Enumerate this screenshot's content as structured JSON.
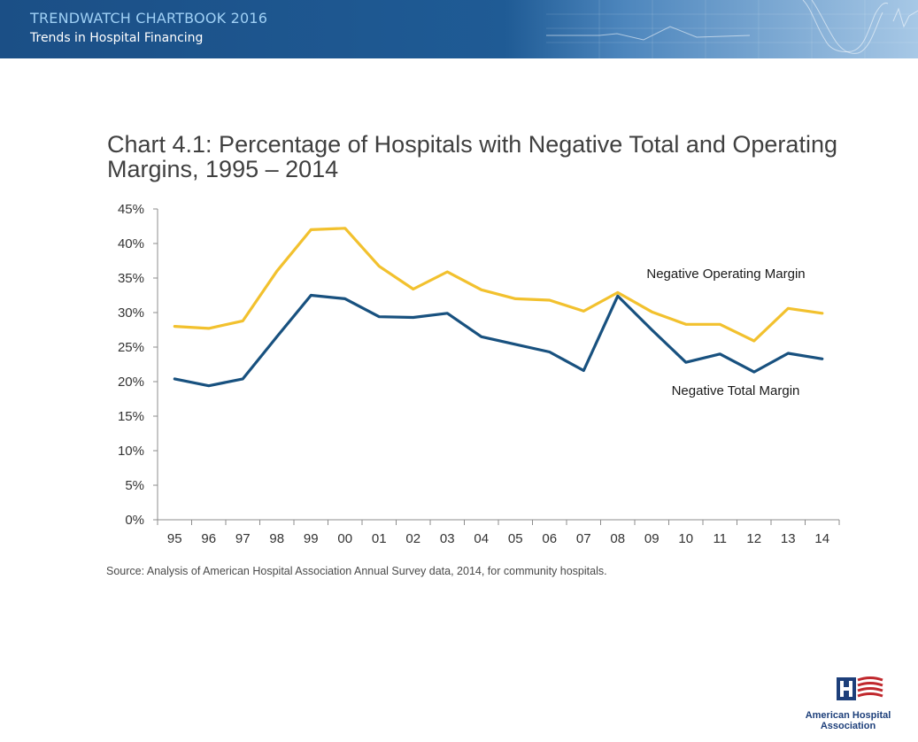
{
  "header": {
    "title": "TRENDWATCH CHARTBOOK 2016",
    "subtitle": "Trends in Hospital Financing"
  },
  "chart_data": {
    "type": "line",
    "title": "Chart 4.1: Percentage of Hospitals with Negative Total and Operating Margins, 1995 – 2014",
    "categories": [
      "95",
      "96",
      "97",
      "98",
      "99",
      "00",
      "01",
      "02",
      "03",
      "04",
      "05",
      "06",
      "07",
      "08",
      "09",
      "10",
      "11",
      "12",
      "13",
      "14"
    ],
    "ylim": [
      0,
      45
    ],
    "yticks": [
      "0%",
      "5%",
      "10%",
      "15%",
      "20%",
      "25%",
      "30%",
      "35%",
      "40%",
      "45%"
    ],
    "grid": false,
    "series": [
      {
        "name": "Negative Operating Margin",
        "color": "#f2c12e",
        "values": [
          28.0,
          27.7,
          28.8,
          36.0,
          42.0,
          42.2,
          36.7,
          33.4,
          35.9,
          33.3,
          32.0,
          31.8,
          30.2,
          32.9,
          30.1,
          28.3,
          28.3,
          25.9,
          30.6,
          29.9
        ]
      },
      {
        "name": "Negative Total Margin",
        "color": "#18517f",
        "values": [
          20.4,
          19.4,
          20.4,
          26.5,
          32.5,
          32.0,
          29.4,
          29.3,
          29.9,
          26.5,
          25.4,
          24.3,
          21.6,
          32.4,
          27.5,
          22.8,
          24.0,
          21.4,
          24.1,
          23.3
        ]
      }
    ],
    "source": "Source: Analysis of American Hospital Association Annual Survey data, 2014, for community hospitals."
  },
  "logo": {
    "line1": "American Hospital",
    "line2": "Association"
  }
}
